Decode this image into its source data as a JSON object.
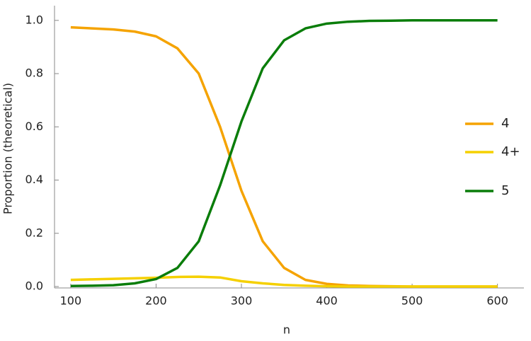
{
  "chart_data": {
    "type": "line",
    "xlabel": "n",
    "ylabel": "Proportion (theoretical)",
    "x": [
      100,
      125,
      150,
      175,
      200,
      225,
      250,
      275,
      300,
      325,
      350,
      375,
      400,
      425,
      450,
      475,
      500,
      525,
      550,
      575,
      600
    ],
    "series": [
      {
        "name": "4",
        "color": "#f5a300",
        "values": [
          0.974,
          0.97,
          0.966,
          0.958,
          0.94,
          0.895,
          0.8,
          0.6,
          0.36,
          0.17,
          0.07,
          0.025,
          0.01,
          0.004,
          0.002,
          0.001,
          0,
          0,
          0,
          0,
          0
        ]
      },
      {
        "name": "4+",
        "color": "#f5d000",
        "values": [
          0.025,
          0.027,
          0.029,
          0.031,
          0.033,
          0.036,
          0.037,
          0.034,
          0.02,
          0.012,
          0.006,
          0.003,
          0.001,
          0,
          0,
          0,
          0,
          0,
          0,
          0,
          0
        ]
      },
      {
        "name": "5",
        "color": "#0a7d0a",
        "values": [
          0.002,
          0.003,
          0.005,
          0.012,
          0.028,
          0.07,
          0.17,
          0.38,
          0.62,
          0.82,
          0.925,
          0.97,
          0.988,
          0.995,
          0.998,
          0.999,
          1.0,
          1.0,
          1.0,
          1.0,
          1.0
        ]
      }
    ],
    "xlim": [
      81,
      631
    ],
    "ylim": [
      0,
      1.05
    ],
    "xticks": [
      100,
      200,
      300,
      400,
      500,
      600
    ],
    "yticks": [
      {
        "value": 0,
        "label": "0.0"
      },
      {
        "value": 0.2,
        "label": "0.2"
      },
      {
        "value": 0.4,
        "label": "0.4"
      },
      {
        "value": 0.6,
        "label": "0.6"
      },
      {
        "value": 0.8,
        "label": "0.8"
      },
      {
        "value": 1,
        "label": "1.0"
      }
    ],
    "grid": false,
    "legend": "right"
  }
}
